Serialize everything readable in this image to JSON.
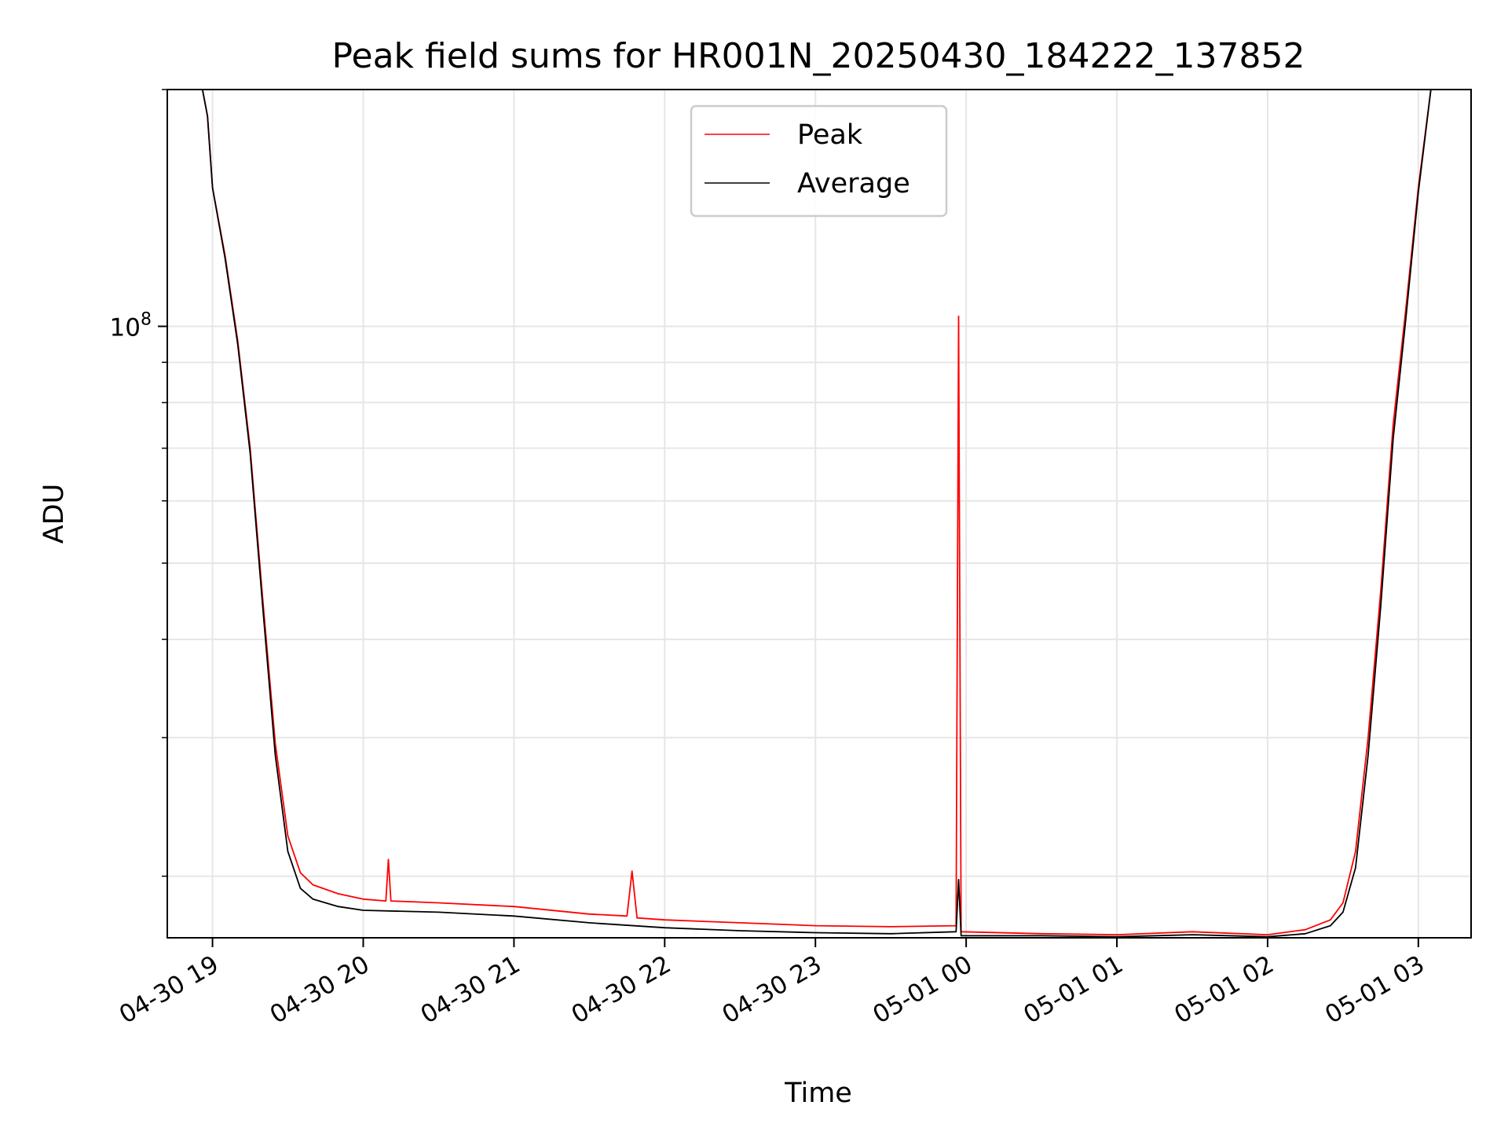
{
  "chart_data": {
    "type": "line",
    "title": "Peak field sums for HR001N_20250430_184222_137852",
    "xlabel": "Time",
    "ylabel": "ADU",
    "y_scale": "log",
    "ylim": [
      16700000,
      200000000
    ],
    "xlim": [
      "2025-04-30 18:42",
      "2025-05-01 03:21"
    ],
    "grid": true,
    "legend_position": "top-center",
    "x_ticks": [
      {
        "t": "2025-04-30 19:00",
        "label": "04-30 19"
      },
      {
        "t": "2025-04-30 20:00",
        "label": "04-30 20"
      },
      {
        "t": "2025-04-30 21:00",
        "label": "04-30 21"
      },
      {
        "t": "2025-04-30 22:00",
        "label": "04-30 22"
      },
      {
        "t": "2025-04-30 23:00",
        "label": "04-30 23"
      },
      {
        "t": "2025-05-01 00:00",
        "label": "05-01 00"
      },
      {
        "t": "2025-05-01 01:00",
        "label": "05-01 01"
      },
      {
        "t": "2025-05-01 02:00",
        "label": "05-01 02"
      },
      {
        "t": "2025-05-01 03:00",
        "label": "05-01 03"
      }
    ],
    "y_ticks": [
      {
        "value": 100000000,
        "base": "10",
        "exp": "8"
      }
    ],
    "series": [
      {
        "name": "Peak",
        "color": "#ff0000",
        "points": [
          [
            "2025-04-30 18:56",
            200000000
          ],
          [
            "2025-04-30 18:58",
            185000000
          ],
          [
            "2025-04-30 19:00",
            150000000
          ],
          [
            "2025-04-30 19:05",
            123000000
          ],
          [
            "2025-04-30 19:10",
            96000000
          ],
          [
            "2025-04-30 19:15",
            70000000
          ],
          [
            "2025-04-30 19:20",
            45000000
          ],
          [
            "2025-04-30 19:25",
            29500000
          ],
          [
            "2025-04-30 19:30",
            22500000
          ],
          [
            "2025-04-30 19:35",
            20200000
          ],
          [
            "2025-04-30 19:40",
            19500000
          ],
          [
            "2025-04-30 19:50",
            19000000
          ],
          [
            "2025-04-30 20:00",
            18700000
          ],
          [
            "2025-04-30 20:09",
            18600000
          ],
          [
            "2025-04-30 20:10",
            21000000
          ],
          [
            "2025-04-30 20:11",
            18600000
          ],
          [
            "2025-04-30 20:30",
            18500000
          ],
          [
            "2025-04-30 21:00",
            18300000
          ],
          [
            "2025-04-30 21:30",
            17900000
          ],
          [
            "2025-04-30 21:45",
            17800000
          ],
          [
            "2025-04-30 21:47",
            20300000
          ],
          [
            "2025-04-30 21:49",
            17700000
          ],
          [
            "2025-04-30 22:00",
            17600000
          ],
          [
            "2025-04-30 22:30",
            17450000
          ],
          [
            "2025-04-30 23:00",
            17300000
          ],
          [
            "2025-04-30 23:30",
            17250000
          ],
          [
            "2025-04-30 23:56",
            17300000
          ],
          [
            "2025-04-30 23:57",
            103000000
          ],
          [
            "2025-04-30 23:58",
            17000000
          ],
          [
            "2025-05-01 00:30",
            16900000
          ],
          [
            "2025-05-01 01:00",
            16850000
          ],
          [
            "2025-05-01 01:30",
            17000000
          ],
          [
            "2025-05-01 02:00",
            16850000
          ],
          [
            "2025-05-01 02:15",
            17100000
          ],
          [
            "2025-05-01 02:25",
            17600000
          ],
          [
            "2025-05-01 02:30",
            18500000
          ],
          [
            "2025-05-01 02:35",
            21500000
          ],
          [
            "2025-05-01 02:40",
            30000000
          ],
          [
            "2025-05-01 02:45",
            46000000
          ],
          [
            "2025-05-01 02:50",
            75000000
          ],
          [
            "2025-05-01 02:55",
            105000000
          ],
          [
            "2025-05-01 03:00",
            150000000
          ],
          [
            "2025-05-01 03:05",
            200000000
          ]
        ]
      },
      {
        "name": "Average",
        "color": "#000000",
        "points": [
          [
            "2025-04-30 18:56",
            200000000
          ],
          [
            "2025-04-30 18:58",
            185000000
          ],
          [
            "2025-04-30 19:00",
            150000000
          ],
          [
            "2025-04-30 19:05",
            122000000
          ],
          [
            "2025-04-30 19:10",
            95000000
          ],
          [
            "2025-04-30 19:15",
            69000000
          ],
          [
            "2025-04-30 19:20",
            44000000
          ],
          [
            "2025-04-30 19:25",
            28500000
          ],
          [
            "2025-04-30 19:30",
            21500000
          ],
          [
            "2025-04-30 19:35",
            19300000
          ],
          [
            "2025-04-30 19:40",
            18700000
          ],
          [
            "2025-04-30 19:50",
            18300000
          ],
          [
            "2025-04-30 20:00",
            18100000
          ],
          [
            "2025-04-30 20:30",
            18000000
          ],
          [
            "2025-04-30 21:00",
            17800000
          ],
          [
            "2025-04-30 21:30",
            17450000
          ],
          [
            "2025-04-30 22:00",
            17200000
          ],
          [
            "2025-04-30 22:30",
            17050000
          ],
          [
            "2025-04-30 23:00",
            16950000
          ],
          [
            "2025-04-30 23:30",
            16900000
          ],
          [
            "2025-04-30 23:56",
            17000000
          ],
          [
            "2025-04-30 23:57",
            19800000
          ],
          [
            "2025-04-30 23:58",
            16800000
          ],
          [
            "2025-05-01 00:30",
            16800000
          ],
          [
            "2025-05-01 01:00",
            16750000
          ],
          [
            "2025-05-01 01:30",
            16850000
          ],
          [
            "2025-05-01 02:00",
            16750000
          ],
          [
            "2025-05-01 02:15",
            16900000
          ],
          [
            "2025-05-01 02:25",
            17300000
          ],
          [
            "2025-05-01 02:30",
            18000000
          ],
          [
            "2025-05-01 02:35",
            20500000
          ],
          [
            "2025-05-01 02:40",
            28500000
          ],
          [
            "2025-05-01 02:45",
            44000000
          ],
          [
            "2025-05-01 02:50",
            72000000
          ],
          [
            "2025-05-01 02:55",
            102000000
          ],
          [
            "2025-05-01 03:00",
            148000000
          ],
          [
            "2025-05-01 03:05",
            200000000
          ]
        ]
      }
    ]
  }
}
